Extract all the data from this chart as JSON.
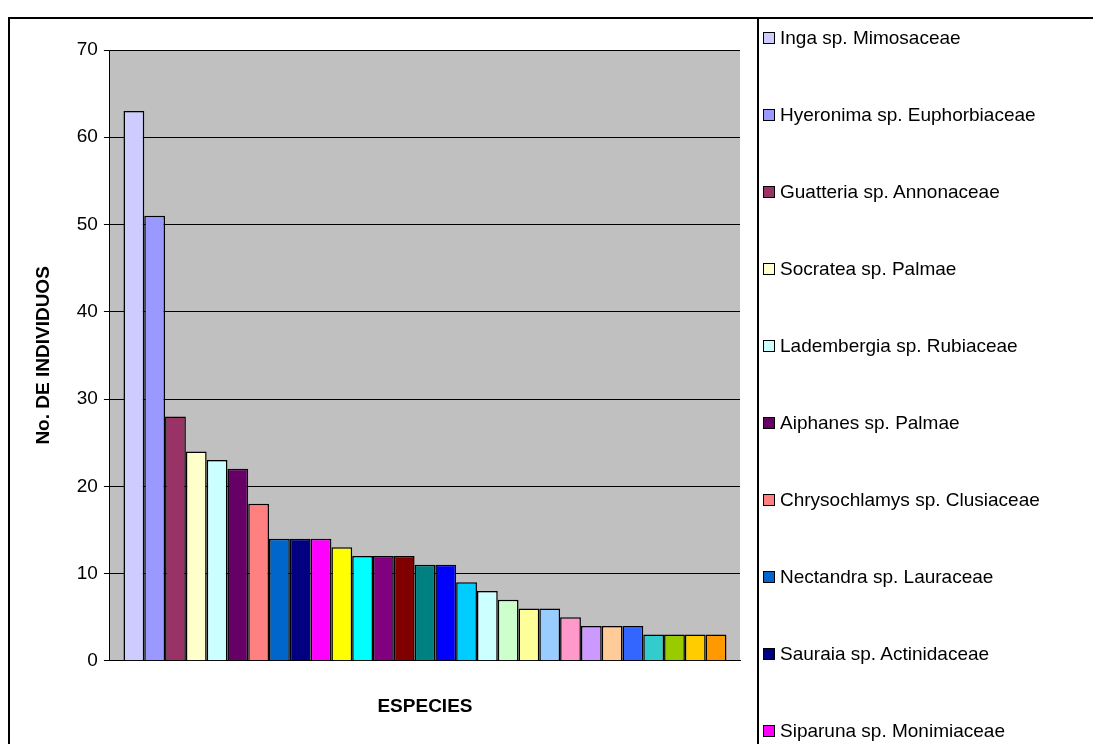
{
  "chart_data": {
    "type": "bar",
    "xlabel": "ESPECIES",
    "ylabel": "No. DE INDIVIDUOS",
    "categories": [
      null
    ],
    "series": [
      {
        "name": "Inga sp. Mimosaceae",
        "color": "#ccccff",
        "values": [
          63
        ]
      },
      {
        "name": "Hyeronima sp. Euphorbiaceae",
        "color": "#9999ff",
        "values": [
          51
        ]
      },
      {
        "name": "Guatteria sp. Annonaceae",
        "color": "#993366",
        "values": [
          28
        ]
      },
      {
        "name": "Socratea sp. Palmae",
        "color": "#ffffcc",
        "values": [
          24
        ]
      },
      {
        "name": "Ladembergia sp. Rubiaceae",
        "color": "#ccffff",
        "values": [
          23
        ]
      },
      {
        "name": "Aiphanes sp.  Palmae",
        "color": "#660066",
        "values": [
          22
        ]
      },
      {
        "name": "Chrysochlamys sp. Clusiaceae",
        "color": "#ff8080",
        "values": [
          18
        ]
      },
      {
        "name": "Nectandra sp. Lauraceae",
        "color": "#0066cc",
        "values": [
          14
        ]
      },
      {
        "name": "Sauraia sp. Actinidaceae",
        "color": "#000080",
        "values": [
          14
        ]
      },
      {
        "name": "Siparuna sp. Monimiaceae",
        "color": "#ff00ff",
        "values": [
          14
        ]
      },
      {
        "color": "#ffff00",
        "values": [
          13
        ]
      },
      {
        "color": "#00ffff",
        "values": [
          12
        ]
      },
      {
        "color": "#800080",
        "values": [
          12
        ]
      },
      {
        "color": "#800000",
        "values": [
          12
        ]
      },
      {
        "color": "#008080",
        "values": [
          11
        ]
      },
      {
        "color": "#0000ff",
        "values": [
          11
        ]
      },
      {
        "color": "#00ccff",
        "values": [
          9
        ]
      },
      {
        "color": "#ccffff",
        "values": [
          8
        ]
      },
      {
        "color": "#ccffcc",
        "values": [
          7
        ]
      },
      {
        "color": "#ffff99",
        "values": [
          6
        ]
      },
      {
        "color": "#99ccff",
        "values": [
          6
        ]
      },
      {
        "color": "#ff99cc",
        "values": [
          5
        ]
      },
      {
        "color": "#cc99ff",
        "values": [
          4
        ]
      },
      {
        "color": "#ffcc99",
        "values": [
          4
        ]
      },
      {
        "color": "#3366ff",
        "values": [
          4
        ]
      },
      {
        "color": "#33cccc",
        "values": [
          3
        ]
      },
      {
        "color": "#99cc00",
        "values": [
          3
        ]
      },
      {
        "color": "#ffcc00",
        "values": [
          3
        ]
      },
      {
        "color": "#ff9900",
        "values": [
          3
        ]
      }
    ],
    "ylim": [
      0,
      70
    ],
    "yticks": [
      0,
      10,
      20,
      30,
      40,
      50,
      60,
      70
    ],
    "grid": "y",
    "legend": "right"
  }
}
